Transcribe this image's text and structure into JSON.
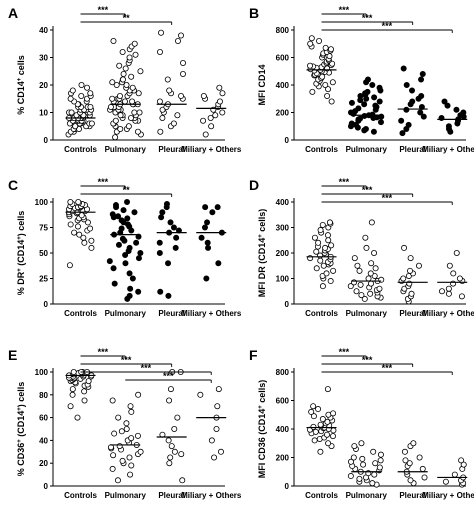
{
  "figure": {
    "background": "#ffffff",
    "ink": "#000000"
  },
  "chart_data": [
    {
      "panel": "A",
      "type": "scatter",
      "ylabel_parts": [
        "% CD14",
        "+",
        " cells"
      ],
      "categories": [
        "Controls",
        "Pulmonary",
        "Pleural",
        "Miliary + Others"
      ],
      "ylim": [
        0,
        40
      ],
      "yticks": [
        0,
        10,
        20,
        30,
        40
      ],
      "marker": "circle-open",
      "medians": [
        8,
        13,
        13,
        11.5
      ],
      "significance": [
        {
          "from": 0,
          "to": 1,
          "label": "***"
        },
        {
          "from": 0,
          "to": 2,
          "label": "**"
        }
      ],
      "series": [
        [
          2,
          3,
          3,
          4,
          4,
          4,
          5,
          5,
          5,
          5,
          6,
          6,
          6,
          6,
          6,
          7,
          7,
          7,
          7,
          7,
          7,
          8,
          8,
          8,
          8,
          8,
          8,
          8,
          9,
          9,
          9,
          9,
          9,
          9,
          10,
          10,
          10,
          10,
          10,
          11,
          11,
          11,
          11,
          12,
          12,
          12,
          12,
          13,
          13,
          14,
          14,
          15,
          15,
          16,
          16,
          17,
          17,
          18,
          19,
          20
        ],
        [
          1,
          2,
          3,
          3,
          4,
          4,
          5,
          5,
          6,
          6,
          7,
          7,
          7,
          8,
          8,
          8,
          9,
          9,
          9,
          10,
          10,
          10,
          11,
          11,
          11,
          12,
          12,
          12,
          13,
          13,
          13,
          13,
          14,
          14,
          14,
          15,
          15,
          15,
          16,
          16,
          17,
          17,
          18,
          18,
          19,
          19,
          20,
          20,
          21,
          21,
          22,
          22,
          23,
          24,
          25,
          26,
          27,
          28,
          29,
          30,
          31,
          32,
          33,
          34,
          35,
          36
        ],
        [
          3,
          5,
          6,
          8,
          9,
          10,
          11,
          12,
          13,
          14,
          15,
          16,
          17,
          18,
          22,
          24,
          28,
          32,
          36,
          38,
          39
        ],
        [
          2,
          5,
          7,
          8,
          9,
          10,
          11,
          12,
          13,
          14,
          15,
          16,
          17,
          19
        ]
      ]
    },
    {
      "panel": "B",
      "type": "scatter",
      "ylabel_parts": [
        "MFI CD14"
      ],
      "categories": [
        "Controls",
        "Pulmonary",
        "Pleural",
        "Miliary + Others"
      ],
      "ylim": [
        0,
        800
      ],
      "yticks": [
        0,
        200,
        400,
        600,
        800
      ],
      "marker": "circle-open-filled-mix",
      "medians": [
        510,
        180,
        225,
        150
      ],
      "significance": [
        {
          "from": 0,
          "to": 1,
          "label": "***"
        },
        {
          "from": 0,
          "to": 2,
          "label": "***"
        },
        {
          "from": 0,
          "to": 3,
          "label": "***"
        }
      ],
      "series": [
        [
          280,
          320,
          350,
          370,
          390,
          400,
          410,
          420,
          430,
          440,
          450,
          460,
          470,
          475,
          480,
          485,
          490,
          495,
          500,
          505,
          510,
          515,
          520,
          525,
          530,
          535,
          540,
          545,
          550,
          555,
          560,
          570,
          580,
          590,
          600,
          610,
          620,
          630,
          640,
          650,
          660,
          670,
          680,
          700,
          720,
          740
        ],
        [
          60,
          70,
          80,
          90,
          100,
          110,
          120,
          130,
          140,
          150,
          155,
          160,
          165,
          170,
          175,
          180,
          185,
          190,
          195,
          200,
          210,
          220,
          230,
          240,
          250,
          260,
          270,
          280,
          290,
          300,
          310,
          320,
          330,
          340,
          350,
          360,
          380,
          400,
          420,
          440
        ],
        [
          50,
          80,
          110,
          140,
          170,
          200,
          220,
          240,
          260,
          280,
          300,
          320,
          360,
          400,
          440,
          480,
          520
        ],
        [
          60,
          80,
          100,
          120,
          140,
          150,
          160,
          170,
          180,
          200,
          220,
          250,
          280
        ]
      ]
    },
    {
      "panel": "C",
      "type": "scatter",
      "ylabel_parts": [
        "% DR",
        "+",
        " (CD14",
        "+",
        ") cells"
      ],
      "categories": [
        "Controls",
        "Pulmonary",
        "Pleural",
        "Miliary + Others"
      ],
      "ylim": [
        0,
        100
      ],
      "yticks": [
        0,
        25,
        50,
        75,
        100
      ],
      "marker": "circle-open-filled-mix",
      "medians": [
        90,
        68,
        70,
        70
      ],
      "significance": [
        {
          "from": 0,
          "to": 1,
          "label": "***"
        },
        {
          "from": 0,
          "to": 2,
          "label": "**"
        }
      ],
      "series": [
        [
          38,
          55,
          60,
          62,
          65,
          68,
          70,
          72,
          74,
          76,
          78,
          80,
          82,
          83,
          84,
          85,
          86,
          87,
          88,
          89,
          90,
          90,
          91,
          91,
          92,
          92,
          93,
          93,
          94,
          94,
          95,
          95,
          96,
          96,
          97,
          98,
          98,
          99,
          100,
          100
        ],
        [
          5,
          8,
          12,
          15,
          20,
          25,
          30,
          35,
          40,
          42,
          45,
          48,
          50,
          52,
          55,
          58,
          60,
          62,
          64,
          66,
          68,
          70,
          72,
          74,
          76,
          78,
          80,
          82,
          84,
          85,
          86,
          88,
          90,
          92,
          95,
          97,
          100
        ],
        [
          8,
          12,
          40,
          50,
          55,
          60,
          65,
          70,
          72,
          75,
          80,
          85,
          90,
          95,
          98
        ],
        [
          25,
          40,
          55,
          60,
          65,
          70,
          75,
          80,
          90,
          95,
          95
        ]
      ]
    },
    {
      "panel": "D",
      "type": "scatter",
      "ylabel_parts": [
        "MFI DR (CD14",
        "+",
        " cells)"
      ],
      "categories": [
        "Controls",
        "Pulmonary",
        "Pleural",
        "Miliary + Others"
      ],
      "ylim": [
        0,
        400
      ],
      "yticks": [
        0,
        100,
        200,
        300,
        400
      ],
      "marker": "circle-open",
      "medians": [
        185,
        90,
        85,
        85
      ],
      "significance": [
        {
          "from": 0,
          "to": 1,
          "label": "***"
        },
        {
          "from": 0,
          "to": 2,
          "label": "***"
        },
        {
          "from": 0,
          "to": 3,
          "label": "***"
        }
      ],
      "series": [
        [
          70,
          90,
          100,
          110,
          120,
          130,
          140,
          150,
          155,
          160,
          165,
          170,
          175,
          180,
          185,
          190,
          195,
          200,
          205,
          210,
          215,
          220,
          225,
          230,
          240,
          250,
          260,
          270,
          280,
          290,
          300,
          310,
          315,
          320
        ],
        [
          20,
          25,
          30,
          35,
          40,
          45,
          50,
          55,
          60,
          65,
          70,
          75,
          80,
          85,
          90,
          95,
          100,
          110,
          120,
          130,
          140,
          150,
          160,
          180,
          200,
          220,
          260,
          320
        ],
        [
          10,
          20,
          30,
          40,
          50,
          60,
          70,
          80,
          90,
          100,
          110,
          120,
          130,
          150,
          180,
          220
        ],
        [
          30,
          40,
          50,
          60,
          80,
          90,
          100,
          120,
          150,
          200
        ]
      ]
    },
    {
      "panel": "E",
      "type": "scatter",
      "ylabel_parts": [
        "% CD36",
        "+",
        " (CD14",
        "+",
        ") cells"
      ],
      "categories": [
        "Controls",
        "Pulmonary",
        "Pleural",
        "Miliary + Others"
      ],
      "ylim": [
        0,
        100
      ],
      "yticks": [
        0,
        20,
        40,
        60,
        80,
        100
      ],
      "marker": "circle-open",
      "medians": [
        97,
        36,
        43,
        60
      ],
      "significance": [
        {
          "from": 0,
          "to": 1,
          "label": "***"
        },
        {
          "from": 0,
          "to": 2,
          "label": "***"
        },
        {
          "from": 0,
          "to": 3,
          "label": "***"
        },
        {
          "from": 1,
          "to": 3,
          "label": "***"
        }
      ],
      "series": [
        [
          60,
          70,
          75,
          80,
          83,
          85,
          87,
          88,
          89,
          90,
          91,
          92,
          92,
          93,
          93,
          94,
          94,
          95,
          95,
          95,
          96,
          96,
          96,
          97,
          97,
          97,
          98,
          98,
          98,
          99,
          99,
          99,
          100,
          100,
          100,
          100
        ],
        [
          5,
          10,
          15,
          18,
          20,
          22,
          25,
          27,
          28,
          30,
          32,
          33,
          34,
          35,
          36,
          38,
          40,
          42,
          44,
          46,
          48,
          50,
          55,
          60,
          65,
          70,
          75,
          80
        ],
        [
          5,
          20,
          25,
          28,
          30,
          35,
          40,
          45,
          50,
          60,
          75,
          85,
          100,
          100
        ],
        [
          25,
          30,
          40,
          50,
          60,
          70,
          80,
          85
        ]
      ]
    },
    {
      "panel": "F",
      "type": "scatter",
      "ylabel_parts": [
        "MFI CD36 (CD14",
        "+",
        " cells)"
      ],
      "categories": [
        "Controls",
        "Pulmonary",
        "Pleural",
        "Miliary + Others"
      ],
      "ylim": [
        0,
        800
      ],
      "yticks": [
        0,
        200,
        400,
        600,
        800
      ],
      "marker": "circle-open",
      "medians": [
        410,
        100,
        100,
        60
      ],
      "significance": [
        {
          "from": 0,
          "to": 1,
          "label": "***"
        },
        {
          "from": 0,
          "to": 2,
          "label": "***"
        },
        {
          "from": 0,
          "to": 3,
          "label": "***"
        }
      ],
      "series": [
        [
          240,
          280,
          300,
          320,
          330,
          340,
          350,
          360,
          370,
          380,
          385,
          390,
          395,
          400,
          405,
          410,
          415,
          420,
          425,
          430,
          440,
          450,
          460,
          470,
          480,
          490,
          500,
          510,
          520,
          540,
          560,
          680
        ],
        [
          10,
          20,
          30,
          40,
          50,
          60,
          70,
          80,
          90,
          100,
          110,
          120,
          130,
          140,
          150,
          160,
          170,
          180,
          190,
          200,
          220,
          240,
          260,
          280,
          300
        ],
        [
          20,
          40,
          60,
          80,
          100,
          120,
          140,
          160,
          180,
          200,
          240,
          280,
          300
        ],
        [
          10,
          20,
          30,
          40,
          60,
          80,
          120,
          150,
          180
        ]
      ]
    }
  ]
}
